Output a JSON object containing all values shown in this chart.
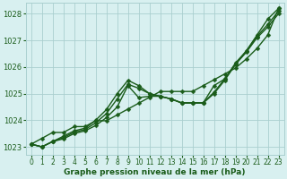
{
  "xlabel": "Graphe pression niveau de la mer (hPa)",
  "ylim": [
    1022.7,
    1028.4
  ],
  "xlim": [
    -0.5,
    23.5
  ],
  "yticks": [
    1023,
    1024,
    1025,
    1026,
    1027,
    1028
  ],
  "xticks": [
    0,
    1,
    2,
    3,
    4,
    5,
    6,
    7,
    8,
    9,
    10,
    11,
    12,
    13,
    14,
    15,
    16,
    17,
    18,
    19,
    20,
    21,
    22,
    23
  ],
  "bg_color": "#d8f0f0",
  "grid_color": "#aacfcf",
  "line_color": "#1a5c1a",
  "line1": [
    1023.1,
    1023.0,
    1023.2,
    1023.3,
    1023.5,
    1023.6,
    1023.8,
    1024.1,
    1024.5,
    1025.3,
    1024.85,
    1024.9,
    1024.9,
    1024.8,
    1024.65,
    1024.65,
    1024.65,
    1025.0,
    1025.5,
    1026.1,
    1026.55,
    1027.1,
    1027.5,
    1028.0
  ],
  "line2": [
    1023.1,
    1023.0,
    1023.2,
    1023.35,
    1023.55,
    1023.65,
    1023.9,
    1024.25,
    1024.8,
    1025.35,
    1025.2,
    1025.0,
    1024.9,
    1024.8,
    1024.65,
    1024.65,
    1024.65,
    1025.05,
    1025.55,
    1026.15,
    1026.6,
    1027.15,
    1027.6,
    1028.1
  ],
  "line3": [
    1023.1,
    1023.0,
    1023.2,
    1023.4,
    1023.6,
    1023.7,
    1024.0,
    1024.4,
    1025.0,
    1025.5,
    1025.3,
    1025.0,
    1024.9,
    1024.8,
    1024.65,
    1024.65,
    1024.65,
    1025.3,
    1025.55,
    1026.1,
    1026.6,
    1027.2,
    1027.8,
    1028.2
  ],
  "line4": [
    1023.1,
    1023.32,
    1023.54,
    1023.54,
    1023.76,
    1023.76,
    1023.98,
    1023.98,
    1024.2,
    1024.42,
    1024.64,
    1024.86,
    1025.08,
    1025.08,
    1025.08,
    1025.08,
    1025.3,
    1025.52,
    1025.74,
    1025.96,
    1026.3,
    1026.7,
    1027.2,
    1028.2
  ],
  "marker_size": 2.5,
  "linewidth": 1.0,
  "tick_fontsize": 6.0,
  "label_fontsize": 6.5
}
